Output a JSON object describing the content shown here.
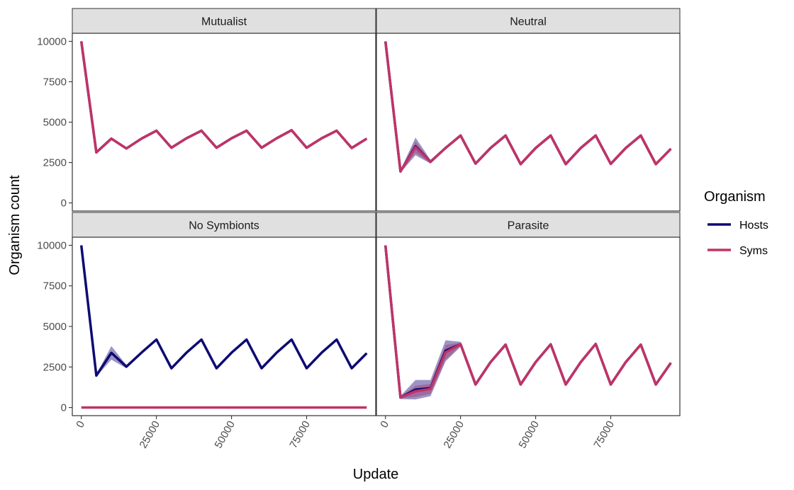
{
  "chart_data": {
    "type": "line",
    "xlabel": "Update",
    "ylabel": "Organism count",
    "xlim": [
      -3000,
      98000
    ],
    "ylim": [
      -500,
      10500
    ],
    "x_ticks": [
      0,
      25000,
      50000,
      75000
    ],
    "x_tick_labels": [
      "0",
      "25000",
      "50000",
      "75000"
    ],
    "y_ticks": [
      0,
      2500,
      5000,
      7500,
      10000
    ],
    "y_tick_labels": [
      "0",
      "2500",
      "5000",
      "7500",
      "10000"
    ],
    "legend": {
      "title": "Organism",
      "placement": "right",
      "entries": [
        {
          "label": "Hosts",
          "color": "#0d0a73"
        },
        {
          "label": "Syms",
          "color": "#c03366"
        }
      ]
    },
    "colors": {
      "hosts": "#0d0a73",
      "syms": "#c03366",
      "hosts_ribbon": "#5b4d9e",
      "syms_ribbon": "#a05080",
      "strip_bg": "#e0e0e0"
    },
    "x": [
      0,
      5000,
      10000,
      15000,
      20000,
      25000,
      30000,
      35000,
      40000,
      45000,
      50000,
      55000,
      60000,
      65000,
      70000,
      75000,
      80000,
      85000,
      90000,
      95000
    ],
    "panels": [
      {
        "title": "Mutualist",
        "series": [
          {
            "name": "Hosts",
            "values": [
              10000,
              3130,
              3980,
              3370,
              3980,
              4470,
              3420,
              4000,
              4470,
              3420,
              4000,
              4470,
              3420,
              4000,
              4500,
              3420,
              4000,
              4470,
              3400,
              3980
            ],
            "ribbon": [
              60,
              60,
              60,
              60,
              60,
              60,
              60,
              60,
              60,
              60,
              60,
              60,
              60,
              60,
              60,
              60,
              60,
              60,
              60,
              60
            ]
          },
          {
            "name": "Syms",
            "values": [
              10000,
              3130,
              3980,
              3370,
              3980,
              4470,
              3420,
              4000,
              4470,
              3420,
              4000,
              4470,
              3420,
              4000,
              4500,
              3420,
              4000,
              4470,
              3400,
              3980
            ],
            "ribbon": [
              40,
              40,
              40,
              40,
              40,
              40,
              40,
              40,
              40,
              40,
              40,
              40,
              40,
              40,
              40,
              40,
              40,
              40,
              40,
              40
            ]
          }
        ]
      },
      {
        "title": "Neutral",
        "series": [
          {
            "name": "Hosts",
            "values": [
              10000,
              1950,
              3500,
              2550,
              3400,
              4170,
              2430,
              3400,
              4170,
              2400,
              3400,
              4170,
              2400,
              3400,
              4170,
              2420,
              3400,
              4170,
              2400,
              3350
            ],
            "ribbon": [
              50,
              80,
              550,
              120,
              80,
              60,
              60,
              60,
              60,
              60,
              60,
              60,
              60,
              60,
              60,
              60,
              60,
              60,
              60,
              60
            ]
          },
          {
            "name": "Syms",
            "values": [
              10000,
              1950,
              3450,
              2550,
              3400,
              4170,
              2430,
              3400,
              4170,
              2400,
              3400,
              4170,
              2400,
              3400,
              4170,
              2420,
              3400,
              4170,
              2400,
              3350
            ],
            "ribbon": [
              40,
              60,
              350,
              80,
              60,
              40,
              40,
              40,
              40,
              40,
              40,
              40,
              40,
              40,
              40,
              40,
              40,
              40,
              40,
              40
            ]
          }
        ]
      },
      {
        "title": "No Symbionts",
        "series": [
          {
            "name": "Hosts",
            "values": [
              10000,
              1970,
              3370,
              2520,
              3380,
              4190,
              2420,
              3380,
              4190,
              2420,
              3380,
              4190,
              2420,
              3380,
              4190,
              2420,
              3380,
              4190,
              2420,
              3350
            ],
            "ribbon": [
              40,
              60,
              420,
              100,
              60,
              50,
              50,
              50,
              50,
              50,
              50,
              50,
              50,
              50,
              50,
              50,
              50,
              50,
              50,
              50
            ]
          },
          {
            "name": "Syms",
            "values": [
              0,
              0,
              0,
              0,
              0,
              0,
              0,
              0,
              0,
              0,
              0,
              0,
              0,
              0,
              0,
              0,
              0,
              0,
              0,
              0
            ],
            "ribbon": [
              0,
              0,
              0,
              0,
              0,
              0,
              0,
              0,
              0,
              0,
              0,
              0,
              0,
              0,
              0,
              0,
              0,
              0,
              0,
              0
            ]
          }
        ]
      },
      {
        "title": "Parasite",
        "series": [
          {
            "name": "Hosts",
            "values": [
              10000,
              620,
              1100,
              1200,
              3500,
              3900,
              1420,
              2800,
              3880,
              1420,
              2800,
              3900,
              1420,
              2800,
              3920,
              1420,
              2800,
              3880,
              1420,
              2750
            ],
            "ribbon": [
              40,
              100,
              600,
              500,
              650,
              150,
              60,
              60,
              60,
              60,
              60,
              60,
              60,
              60,
              60,
              60,
              60,
              60,
              60,
              60
            ]
          },
          {
            "name": "Syms",
            "values": [
              10000,
              620,
              1000,
              1150,
              3400,
              3900,
              1420,
              2800,
              3880,
              1420,
              2800,
              3900,
              1420,
              2800,
              3920,
              1420,
              2800,
              3880,
              1420,
              2750
            ],
            "ribbon": [
              30,
              60,
              350,
              300,
              450,
              100,
              40,
              40,
              40,
              40,
              40,
              40,
              40,
              40,
              40,
              40,
              40,
              40,
              40,
              40
            ]
          }
        ]
      }
    ]
  }
}
